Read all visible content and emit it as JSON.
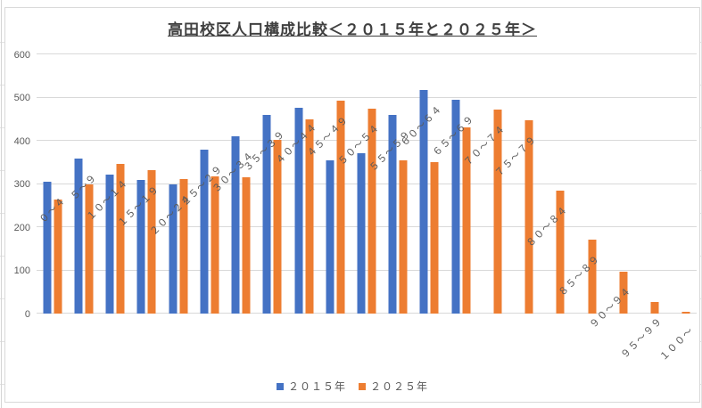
{
  "chart_data": {
    "type": "bar",
    "title": "高田校区人口構成比較＜２０１５年と２０２５年＞",
    "categories": [
      "０～４",
      "５～９",
      "１０～１４",
      "１５～１９",
      "２０～２４",
      "２５～２９",
      "３０～３４",
      "３５～３９",
      "４０～４４",
      "４５～４９",
      "５０～５４",
      "５５～５９",
      "６０～６４",
      "６５～６９",
      "７０～７４",
      "７５～７９",
      "８０～８４",
      "８５～８９",
      "９０～９４",
      "９５～９９",
      "１００～"
    ],
    "series": [
      {
        "name": "２０１５年",
        "color": "#4472C4",
        "values": [
          305,
          358,
          321,
          309,
          299,
          379,
          410,
          459,
          477,
          355,
          371,
          460,
          517,
          495,
          0,
          0,
          0,
          0,
          0,
          0,
          0
        ]
      },
      {
        "name": "２０２５年",
        "color": "#ED7D31",
        "values": [
          263,
          299,
          346,
          333,
          311,
          317,
          315,
          402,
          450,
          493,
          474,
          354,
          350,
          431,
          473,
          448,
          285,
          171,
          97,
          26,
          4
        ]
      }
    ],
    "xlabel": "",
    "ylabel": "",
    "ylim": [
      0,
      600
    ],
    "yticks": [
      0,
      100,
      200,
      300,
      400,
      500,
      600
    ],
    "grid": true,
    "legend_position": "bottom"
  },
  "style_colors": {
    "gridline": "#d9d9d9",
    "axis_text": "#595959",
    "title_text": "#404040"
  }
}
